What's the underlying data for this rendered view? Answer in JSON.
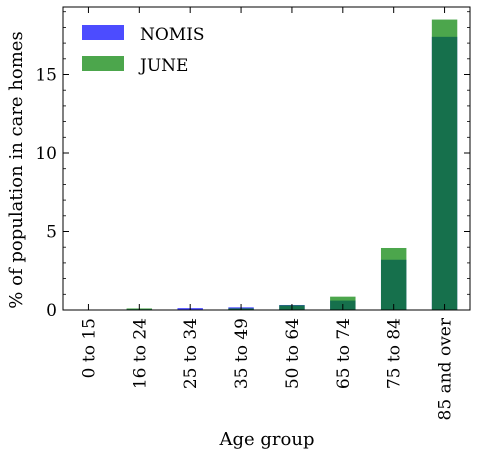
{
  "chart_data": {
    "type": "bar",
    "xlabel": "Age group",
    "ylabel": "% of population in care homes",
    "categories": [
      "0 to 15",
      "16 to 24",
      "25 to 34",
      "35 to 49",
      "50 to 64",
      "65 to 74",
      "75 to 84",
      "85 and over"
    ],
    "series": [
      {
        "name": "NOMIS",
        "color": "#0000ff",
        "opacity": 0.7,
        "values": [
          0.02,
          0.05,
          0.12,
          0.17,
          0.32,
          0.6,
          3.2,
          17.4
        ]
      },
      {
        "name": "JUNE",
        "color": "#008000",
        "opacity": 0.7,
        "values": [
          0.0,
          0.1,
          0.0,
          0.1,
          0.3,
          0.85,
          3.95,
          18.5
        ]
      }
    ],
    "ylim": [
      0,
      19.3
    ],
    "yticks": [
      0,
      5,
      10,
      15
    ],
    "y_minor_step": 1,
    "grid": false,
    "legend_position": "top-left",
    "bar_style": "overlaid"
  }
}
